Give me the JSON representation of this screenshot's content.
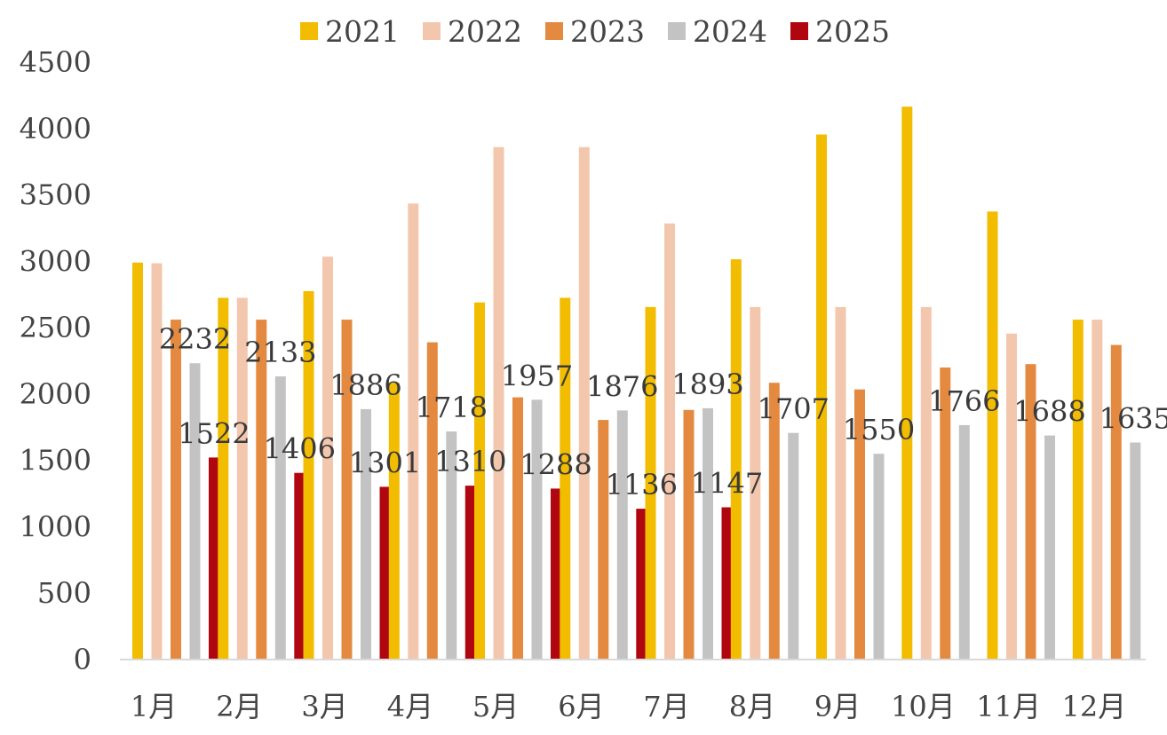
{
  "chart_data": {
    "type": "bar",
    "categories": [
      "1月",
      "2月",
      "3月",
      "4月",
      "5月",
      "6月",
      "7月",
      "8月",
      "9月",
      "10月",
      "11月",
      "12月"
    ],
    "series": [
      {
        "name": "2021",
        "color": "#f2bd00",
        "values": [
          2990,
          2725,
          2775,
          2085,
          2690,
          2725,
          2655,
          3015,
          3955,
          4165,
          3375,
          2560
        ]
      },
      {
        "name": "2022",
        "color": "#f3c7ad",
        "values": [
          2985,
          2725,
          3035,
          3435,
          3860,
          3860,
          3285,
          2655,
          2655,
          2655,
          2455,
          2560
        ]
      },
      {
        "name": "2023",
        "color": "#e48940",
        "values": [
          2560,
          2560,
          2560,
          2390,
          1975,
          1805,
          1880,
          2085,
          2035,
          2200,
          2225,
          2370
        ]
      },
      {
        "name": "2024",
        "color": "#c3c3c3",
        "values": [
          2232,
          2133,
          1886,
          1718,
          1957,
          1876,
          1893,
          1707,
          1550,
          1766,
          1688,
          1635
        ]
      },
      {
        "name": "2025",
        "color": "#b0060f",
        "values": [
          1522,
          1406,
          1301,
          1310,
          1288,
          1136,
          1147,
          null,
          null,
          null,
          null,
          null
        ]
      }
    ],
    "data_labels": {
      "2024": [
        "2232",
        "2133",
        "1886",
        "1718",
        "1957",
        "1876",
        "1893",
        "1707",
        "1550",
        "1766",
        "1688",
        "1635"
      ],
      "2025": [
        "1522",
        "1406",
        "1301",
        "1310",
        "1288",
        "1136",
        "1147"
      ]
    },
    "yticks": [
      "0",
      "500",
      "1000",
      "1500",
      "2000",
      "2500",
      "3000",
      "3500",
      "4000",
      "4500"
    ],
    "ylim": [
      0,
      4500
    ],
    "title": "",
    "xlabel": "",
    "ylabel": "",
    "legend_position": "top-center",
    "grid": false
  }
}
